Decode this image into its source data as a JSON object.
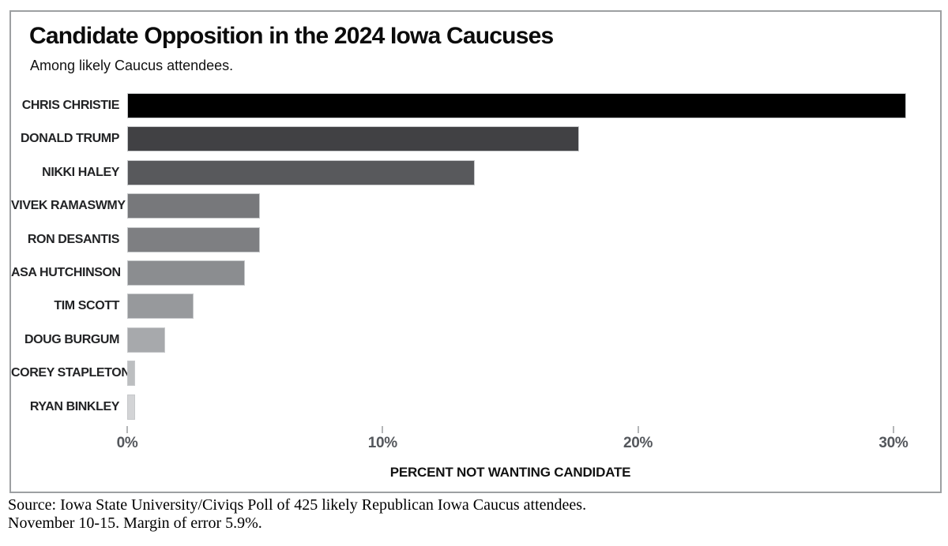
{
  "header": {
    "title": "Candidate Opposition in the 2024 Iowa Caucuses",
    "subtitle": "Among likely Caucus attendees."
  },
  "chart_data": {
    "type": "bar",
    "orientation": "horizontal",
    "title": "Candidate Opposition in the 2024 Iowa Caucuses",
    "subtitle": "Among likely Caucus attendees.",
    "categories": [
      "CHRIS CHRISTIE",
      "DONALD TRUMP",
      "NIKKI HALEY",
      "VIVEK RAMASWMY",
      "RON DESANTIS",
      "ASA HUTCHINSON",
      "TIM SCOTT",
      "DOUG BURGUM",
      "COREY STAPLETON",
      "RYAN BINKLEY"
    ],
    "values": [
      30.5,
      17.7,
      13.6,
      5.2,
      5.2,
      4.6,
      2.6,
      1.5,
      0.3,
      0.3
    ],
    "bar_colors": [
      "#000000",
      "#414144",
      "#58595c",
      "#77787b",
      "#7e7f82",
      "#8b8d90",
      "#97999c",
      "#a7a9ac",
      "#bcbec0",
      "#d3d4d6"
    ],
    "xlabel": "PERCENT NOT WANTING CANDIDATE",
    "ylabel": "",
    "x_ticks": [
      0,
      10,
      20,
      30
    ],
    "x_tick_labels": [
      "0%",
      "10%",
      "20%",
      "30%"
    ],
    "xlim": [
      0,
      31.9
    ],
    "grid": false,
    "legend": false
  },
  "footer": {
    "source_line1": "Source: Iowa State University/Civiqs Poll of 425 likely Republican Iowa Caucus attendees.",
    "source_line2": "November 10-15. Margin of error 5.9%."
  }
}
